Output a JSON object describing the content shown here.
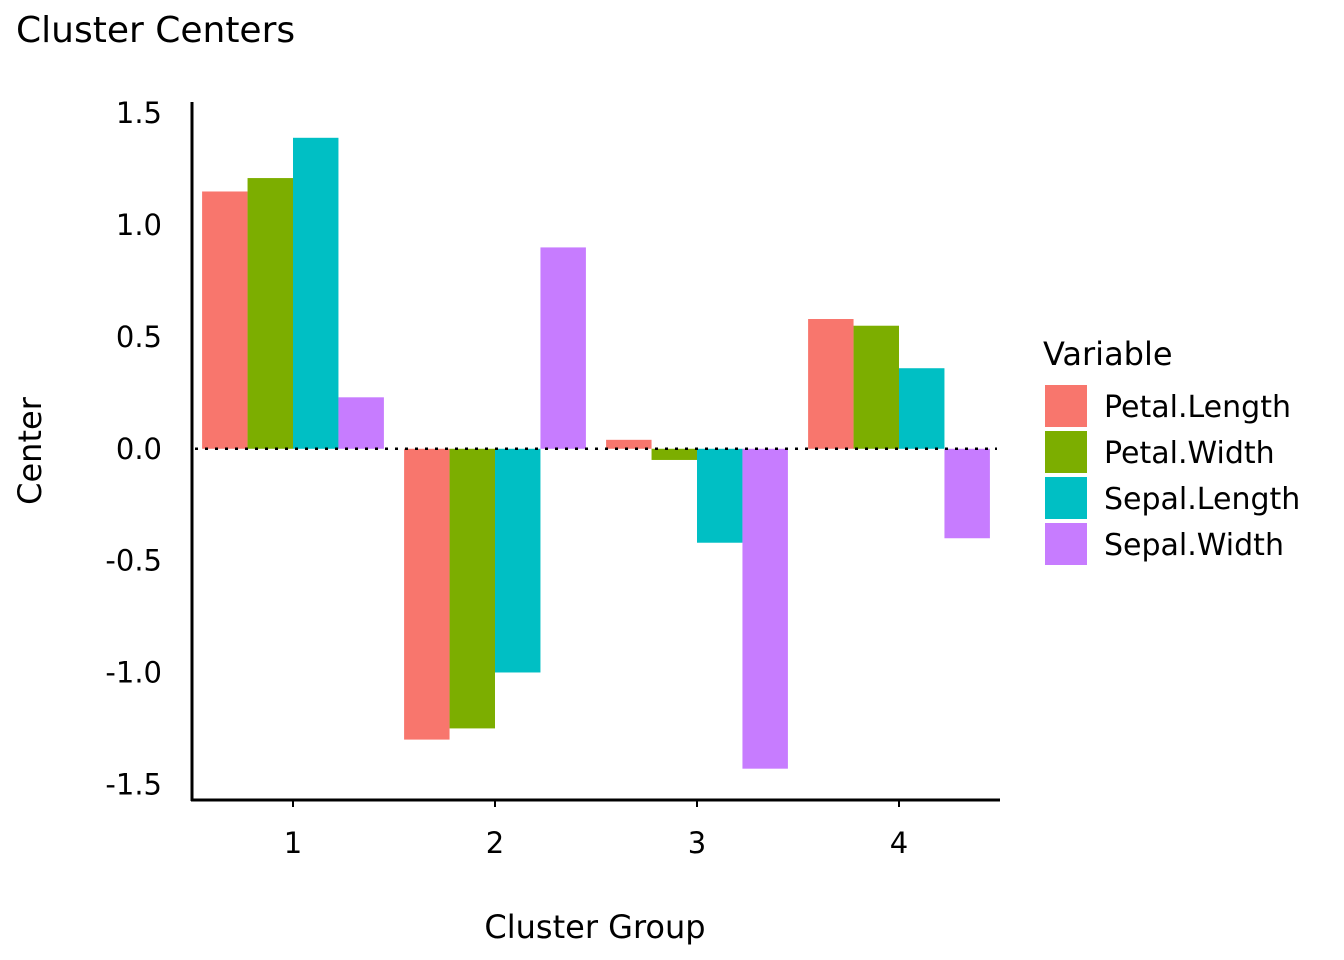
{
  "chart_data": {
    "type": "bar",
    "title": "Cluster Centers",
    "xlabel": "Cluster Group",
    "ylabel": "Center",
    "categories": [
      "1",
      "2",
      "3",
      "4"
    ],
    "ylim": [
      -1.57,
      1.55
    ],
    "yticks": [
      1.5,
      1.0,
      0.5,
      0.0,
      -0.5,
      -1.0,
      -1.5
    ],
    "ytick_labels": [
      "1.5",
      "1.0",
      "0.5",
      "0.0",
      "-0.5",
      "-1.0",
      "-1.5"
    ],
    "reference_line": 0,
    "legend_title": "Variable",
    "legend_position": "right",
    "series": [
      {
        "name": "Petal.Length",
        "color": "#F8766D",
        "values": [
          1.15,
          -1.3,
          0.04,
          0.58
        ]
      },
      {
        "name": "Petal.Width",
        "color": "#7CAE00",
        "values": [
          1.21,
          -1.25,
          -0.05,
          0.55
        ]
      },
      {
        "name": "Sepal.Length",
        "color": "#00BFC4",
        "values": [
          1.39,
          -1.0,
          -0.42,
          0.36
        ]
      },
      {
        "name": "Sepal.Width",
        "color": "#C77CFF",
        "values": [
          0.23,
          0.9,
          -1.43,
          -0.4
        ]
      }
    ]
  }
}
